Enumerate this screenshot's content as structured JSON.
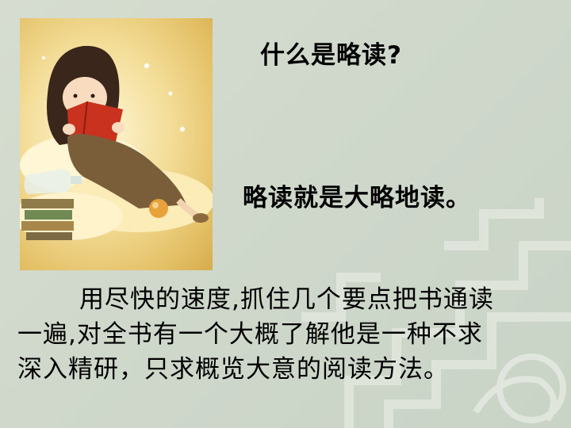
{
  "slide": {
    "title": "什么是略读?",
    "subtitle": "略读就是大略地读。",
    "body_lines": [
      "用尽快的速度,抓住几个要点把书通读",
      "一遍,对全书有一个大概了解他是一种不求",
      "深入精研，只求概览大意的阅读方法。"
    ]
  },
  "colors": {
    "background": "#d2dacd",
    "pattern": "#eef1ea",
    "text": "#000000"
  }
}
